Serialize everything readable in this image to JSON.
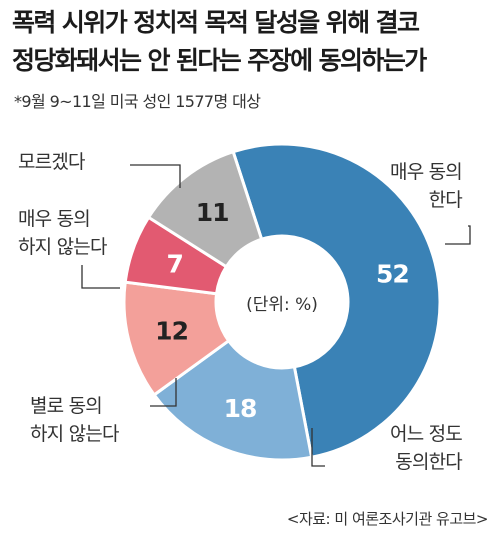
{
  "title_line1": "폭력 시위가 정치적 목적 달성을 위해 결코",
  "title_line2": "정당화돼서는 안 된다는 주장에 동의하는가",
  "subtitle": "*9월 9~11일 미국 성인 1577명 대상",
  "unit_label": "(단위: %)",
  "source": "<자료: 미 여론조사기관 유고브>",
  "chart_data": {
    "type": "pie",
    "title": "폭력 시위가 정치적 목적 달성을 위해 결코 정당화돼서는 안 된다는 주장에 동의하는가",
    "unit": "%",
    "slices": [
      {
        "label_lines": [
          "매우 동의",
          "한다"
        ],
        "value": 52,
        "color": "#3a82b6",
        "text_color": "#ffffff"
      },
      {
        "label_lines": [
          "어느 정도",
          "동의한다"
        ],
        "value": 18,
        "color": "#7fb0d7",
        "text_color": "#ffffff"
      },
      {
        "label_lines": [
          "별로 동의",
          "하지 않는다"
        ],
        "value": 12,
        "color": "#f3a09a",
        "text_color": "#222222"
      },
      {
        "label_lines": [
          "매우 동의",
          "하지 않는다"
        ],
        "value": 7,
        "color": "#e25a71",
        "text_color": "#ffffff"
      },
      {
        "label_lines": [
          "모르겠다"
        ],
        "value": 11,
        "color": "#b3b3b3",
        "text_color": "#222222"
      }
    ]
  }
}
